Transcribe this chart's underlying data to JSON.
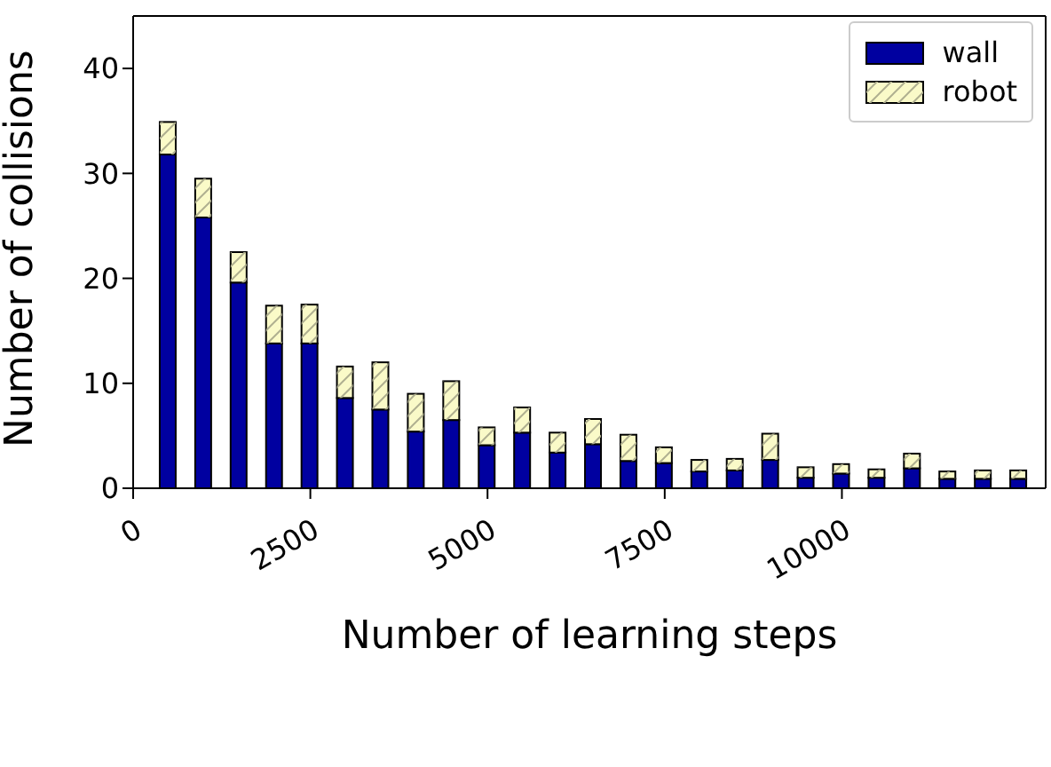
{
  "chart_data": {
    "type": "bar",
    "stacked": true,
    "xlabel": "Number of learning steps",
    "ylabel": "Number of collisions",
    "x": [
      500,
      1000,
      1500,
      2000,
      2500,
      3000,
      3500,
      4000,
      4500,
      5000,
      5500,
      6000,
      6500,
      7000,
      7500,
      8000,
      8500,
      9000,
      9500,
      10000,
      10500,
      11000,
      11500,
      12000,
      12500
    ],
    "series": [
      {
        "name": "wall",
        "color": "#0000a0",
        "values": [
          31.8,
          25.8,
          19.6,
          13.8,
          13.8,
          8.6,
          7.5,
          5.4,
          6.5,
          4.1,
          5.3,
          3.4,
          4.2,
          2.6,
          2.4,
          1.6,
          1.7,
          2.7,
          1.0,
          1.4,
          1.0,
          1.9,
          0.9,
          0.9,
          0.9
        ]
      },
      {
        "name": "robot",
        "color": "#fafac8",
        "values": [
          3.1,
          3.7,
          2.9,
          3.6,
          3.7,
          3.0,
          4.5,
          3.6,
          3.7,
          1.7,
          2.4,
          1.9,
          2.4,
          2.5,
          1.5,
          1.1,
          1.1,
          2.5,
          1.0,
          0.9,
          0.8,
          1.4,
          0.7,
          0.8,
          0.8
        ]
      }
    ],
    "xlim": [
      0,
      12875
    ],
    "xticks": [
      0,
      2500,
      5000,
      7500,
      10000
    ],
    "ylim": [
      0,
      45
    ],
    "yticks": [
      0,
      10,
      20,
      30,
      40
    ],
    "grid": false,
    "legend": "top right"
  }
}
